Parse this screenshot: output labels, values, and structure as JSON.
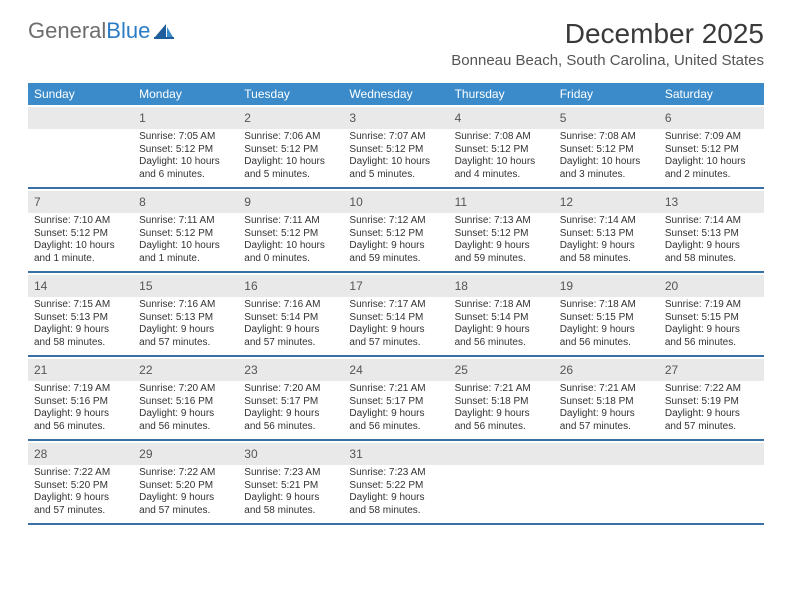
{
  "logo": {
    "text_general": "General",
    "text_blue": "Blue"
  },
  "title": "December 2025",
  "location": "Bonneau Beach, South Carolina, United States",
  "colors": {
    "header_bg": "#3b8bca",
    "divider": "#396fa3",
    "daynum_bg": "#e9e9e9",
    "text": "#333333",
    "title_text": "#3a3a3a",
    "logo_gray": "#6d6d6d",
    "logo_blue": "#2c7cc5"
  },
  "day_names": [
    "Sunday",
    "Monday",
    "Tuesday",
    "Wednesday",
    "Thursday",
    "Friday",
    "Saturday"
  ],
  "weeks": [
    [
      null,
      {
        "n": "1",
        "sr": "Sunrise: 7:05 AM",
        "ss": "Sunset: 5:12 PM",
        "d1": "Daylight: 10 hours",
        "d2": "and 6 minutes."
      },
      {
        "n": "2",
        "sr": "Sunrise: 7:06 AM",
        "ss": "Sunset: 5:12 PM",
        "d1": "Daylight: 10 hours",
        "d2": "and 5 minutes."
      },
      {
        "n": "3",
        "sr": "Sunrise: 7:07 AM",
        "ss": "Sunset: 5:12 PM",
        "d1": "Daylight: 10 hours",
        "d2": "and 5 minutes."
      },
      {
        "n": "4",
        "sr": "Sunrise: 7:08 AM",
        "ss": "Sunset: 5:12 PM",
        "d1": "Daylight: 10 hours",
        "d2": "and 4 minutes."
      },
      {
        "n": "5",
        "sr": "Sunrise: 7:08 AM",
        "ss": "Sunset: 5:12 PM",
        "d1": "Daylight: 10 hours",
        "d2": "and 3 minutes."
      },
      {
        "n": "6",
        "sr": "Sunrise: 7:09 AM",
        "ss": "Sunset: 5:12 PM",
        "d1": "Daylight: 10 hours",
        "d2": "and 2 minutes."
      }
    ],
    [
      {
        "n": "7",
        "sr": "Sunrise: 7:10 AM",
        "ss": "Sunset: 5:12 PM",
        "d1": "Daylight: 10 hours",
        "d2": "and 1 minute."
      },
      {
        "n": "8",
        "sr": "Sunrise: 7:11 AM",
        "ss": "Sunset: 5:12 PM",
        "d1": "Daylight: 10 hours",
        "d2": "and 1 minute."
      },
      {
        "n": "9",
        "sr": "Sunrise: 7:11 AM",
        "ss": "Sunset: 5:12 PM",
        "d1": "Daylight: 10 hours",
        "d2": "and 0 minutes."
      },
      {
        "n": "10",
        "sr": "Sunrise: 7:12 AM",
        "ss": "Sunset: 5:12 PM",
        "d1": "Daylight: 9 hours",
        "d2": "and 59 minutes."
      },
      {
        "n": "11",
        "sr": "Sunrise: 7:13 AM",
        "ss": "Sunset: 5:12 PM",
        "d1": "Daylight: 9 hours",
        "d2": "and 59 minutes."
      },
      {
        "n": "12",
        "sr": "Sunrise: 7:14 AM",
        "ss": "Sunset: 5:13 PM",
        "d1": "Daylight: 9 hours",
        "d2": "and 58 minutes."
      },
      {
        "n": "13",
        "sr": "Sunrise: 7:14 AM",
        "ss": "Sunset: 5:13 PM",
        "d1": "Daylight: 9 hours",
        "d2": "and 58 minutes."
      }
    ],
    [
      {
        "n": "14",
        "sr": "Sunrise: 7:15 AM",
        "ss": "Sunset: 5:13 PM",
        "d1": "Daylight: 9 hours",
        "d2": "and 58 minutes."
      },
      {
        "n": "15",
        "sr": "Sunrise: 7:16 AM",
        "ss": "Sunset: 5:13 PM",
        "d1": "Daylight: 9 hours",
        "d2": "and 57 minutes."
      },
      {
        "n": "16",
        "sr": "Sunrise: 7:16 AM",
        "ss": "Sunset: 5:14 PM",
        "d1": "Daylight: 9 hours",
        "d2": "and 57 minutes."
      },
      {
        "n": "17",
        "sr": "Sunrise: 7:17 AM",
        "ss": "Sunset: 5:14 PM",
        "d1": "Daylight: 9 hours",
        "d2": "and 57 minutes."
      },
      {
        "n": "18",
        "sr": "Sunrise: 7:18 AM",
        "ss": "Sunset: 5:14 PM",
        "d1": "Daylight: 9 hours",
        "d2": "and 56 minutes."
      },
      {
        "n": "19",
        "sr": "Sunrise: 7:18 AM",
        "ss": "Sunset: 5:15 PM",
        "d1": "Daylight: 9 hours",
        "d2": "and 56 minutes."
      },
      {
        "n": "20",
        "sr": "Sunrise: 7:19 AM",
        "ss": "Sunset: 5:15 PM",
        "d1": "Daylight: 9 hours",
        "d2": "and 56 minutes."
      }
    ],
    [
      {
        "n": "21",
        "sr": "Sunrise: 7:19 AM",
        "ss": "Sunset: 5:16 PM",
        "d1": "Daylight: 9 hours",
        "d2": "and 56 minutes."
      },
      {
        "n": "22",
        "sr": "Sunrise: 7:20 AM",
        "ss": "Sunset: 5:16 PM",
        "d1": "Daylight: 9 hours",
        "d2": "and 56 minutes."
      },
      {
        "n": "23",
        "sr": "Sunrise: 7:20 AM",
        "ss": "Sunset: 5:17 PM",
        "d1": "Daylight: 9 hours",
        "d2": "and 56 minutes."
      },
      {
        "n": "24",
        "sr": "Sunrise: 7:21 AM",
        "ss": "Sunset: 5:17 PM",
        "d1": "Daylight: 9 hours",
        "d2": "and 56 minutes."
      },
      {
        "n": "25",
        "sr": "Sunrise: 7:21 AM",
        "ss": "Sunset: 5:18 PM",
        "d1": "Daylight: 9 hours",
        "d2": "and 56 minutes."
      },
      {
        "n": "26",
        "sr": "Sunrise: 7:21 AM",
        "ss": "Sunset: 5:18 PM",
        "d1": "Daylight: 9 hours",
        "d2": "and 57 minutes."
      },
      {
        "n": "27",
        "sr": "Sunrise: 7:22 AM",
        "ss": "Sunset: 5:19 PM",
        "d1": "Daylight: 9 hours",
        "d2": "and 57 minutes."
      }
    ],
    [
      {
        "n": "28",
        "sr": "Sunrise: 7:22 AM",
        "ss": "Sunset: 5:20 PM",
        "d1": "Daylight: 9 hours",
        "d2": "and 57 minutes."
      },
      {
        "n": "29",
        "sr": "Sunrise: 7:22 AM",
        "ss": "Sunset: 5:20 PM",
        "d1": "Daylight: 9 hours",
        "d2": "and 57 minutes."
      },
      {
        "n": "30",
        "sr": "Sunrise: 7:23 AM",
        "ss": "Sunset: 5:21 PM",
        "d1": "Daylight: 9 hours",
        "d2": "and 58 minutes."
      },
      {
        "n": "31",
        "sr": "Sunrise: 7:23 AM",
        "ss": "Sunset: 5:22 PM",
        "d1": "Daylight: 9 hours",
        "d2": "and 58 minutes."
      },
      null,
      null,
      null
    ]
  ]
}
